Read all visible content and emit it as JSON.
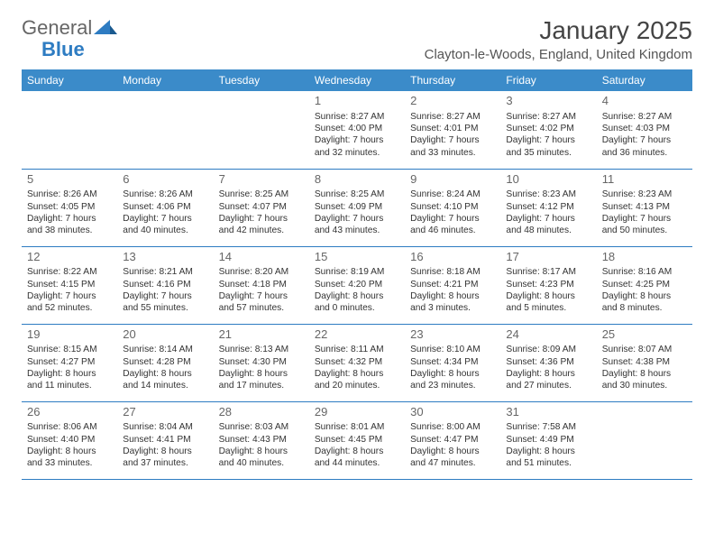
{
  "logo": {
    "part1": "General",
    "part2": "Blue"
  },
  "title": "January 2025",
  "location": "Clayton-le-Woods, England, United Kingdom",
  "colors": {
    "header_bg": "#3b8bc9",
    "header_text": "#ffffff",
    "border": "#2e7cc2",
    "brand_blue": "#2e7cc2",
    "text": "#333333",
    "daynum": "#666666"
  },
  "dayHeaders": [
    "Sunday",
    "Monday",
    "Tuesday",
    "Wednesday",
    "Thursday",
    "Friday",
    "Saturday"
  ],
  "weeks": [
    [
      null,
      null,
      null,
      {
        "n": "1",
        "sr": "8:27 AM",
        "ss": "4:00 PM",
        "dl": "7 hours and 32 minutes."
      },
      {
        "n": "2",
        "sr": "8:27 AM",
        "ss": "4:01 PM",
        "dl": "7 hours and 33 minutes."
      },
      {
        "n": "3",
        "sr": "8:27 AM",
        "ss": "4:02 PM",
        "dl": "7 hours and 35 minutes."
      },
      {
        "n": "4",
        "sr": "8:27 AM",
        "ss": "4:03 PM",
        "dl": "7 hours and 36 minutes."
      }
    ],
    [
      {
        "n": "5",
        "sr": "8:26 AM",
        "ss": "4:05 PM",
        "dl": "7 hours and 38 minutes."
      },
      {
        "n": "6",
        "sr": "8:26 AM",
        "ss": "4:06 PM",
        "dl": "7 hours and 40 minutes."
      },
      {
        "n": "7",
        "sr": "8:25 AM",
        "ss": "4:07 PM",
        "dl": "7 hours and 42 minutes."
      },
      {
        "n": "8",
        "sr": "8:25 AM",
        "ss": "4:09 PM",
        "dl": "7 hours and 43 minutes."
      },
      {
        "n": "9",
        "sr": "8:24 AM",
        "ss": "4:10 PM",
        "dl": "7 hours and 46 minutes."
      },
      {
        "n": "10",
        "sr": "8:23 AM",
        "ss": "4:12 PM",
        "dl": "7 hours and 48 minutes."
      },
      {
        "n": "11",
        "sr": "8:23 AM",
        "ss": "4:13 PM",
        "dl": "7 hours and 50 minutes."
      }
    ],
    [
      {
        "n": "12",
        "sr": "8:22 AM",
        "ss": "4:15 PM",
        "dl": "7 hours and 52 minutes."
      },
      {
        "n": "13",
        "sr": "8:21 AM",
        "ss": "4:16 PM",
        "dl": "7 hours and 55 minutes."
      },
      {
        "n": "14",
        "sr": "8:20 AM",
        "ss": "4:18 PM",
        "dl": "7 hours and 57 minutes."
      },
      {
        "n": "15",
        "sr": "8:19 AM",
        "ss": "4:20 PM",
        "dl": "8 hours and 0 minutes."
      },
      {
        "n": "16",
        "sr": "8:18 AM",
        "ss": "4:21 PM",
        "dl": "8 hours and 3 minutes."
      },
      {
        "n": "17",
        "sr": "8:17 AM",
        "ss": "4:23 PM",
        "dl": "8 hours and 5 minutes."
      },
      {
        "n": "18",
        "sr": "8:16 AM",
        "ss": "4:25 PM",
        "dl": "8 hours and 8 minutes."
      }
    ],
    [
      {
        "n": "19",
        "sr": "8:15 AM",
        "ss": "4:27 PM",
        "dl": "8 hours and 11 minutes."
      },
      {
        "n": "20",
        "sr": "8:14 AM",
        "ss": "4:28 PM",
        "dl": "8 hours and 14 minutes."
      },
      {
        "n": "21",
        "sr": "8:13 AM",
        "ss": "4:30 PM",
        "dl": "8 hours and 17 minutes."
      },
      {
        "n": "22",
        "sr": "8:11 AM",
        "ss": "4:32 PM",
        "dl": "8 hours and 20 minutes."
      },
      {
        "n": "23",
        "sr": "8:10 AM",
        "ss": "4:34 PM",
        "dl": "8 hours and 23 minutes."
      },
      {
        "n": "24",
        "sr": "8:09 AM",
        "ss": "4:36 PM",
        "dl": "8 hours and 27 minutes."
      },
      {
        "n": "25",
        "sr": "8:07 AM",
        "ss": "4:38 PM",
        "dl": "8 hours and 30 minutes."
      }
    ],
    [
      {
        "n": "26",
        "sr": "8:06 AM",
        "ss": "4:40 PM",
        "dl": "8 hours and 33 minutes."
      },
      {
        "n": "27",
        "sr": "8:04 AM",
        "ss": "4:41 PM",
        "dl": "8 hours and 37 minutes."
      },
      {
        "n": "28",
        "sr": "8:03 AM",
        "ss": "4:43 PM",
        "dl": "8 hours and 40 minutes."
      },
      {
        "n": "29",
        "sr": "8:01 AM",
        "ss": "4:45 PM",
        "dl": "8 hours and 44 minutes."
      },
      {
        "n": "30",
        "sr": "8:00 AM",
        "ss": "4:47 PM",
        "dl": "8 hours and 47 minutes."
      },
      {
        "n": "31",
        "sr": "7:58 AM",
        "ss": "4:49 PM",
        "dl": "8 hours and 51 minutes."
      },
      null
    ]
  ],
  "labels": {
    "sunrise": "Sunrise: ",
    "sunset": "Sunset: ",
    "daylight": "Daylight: "
  }
}
